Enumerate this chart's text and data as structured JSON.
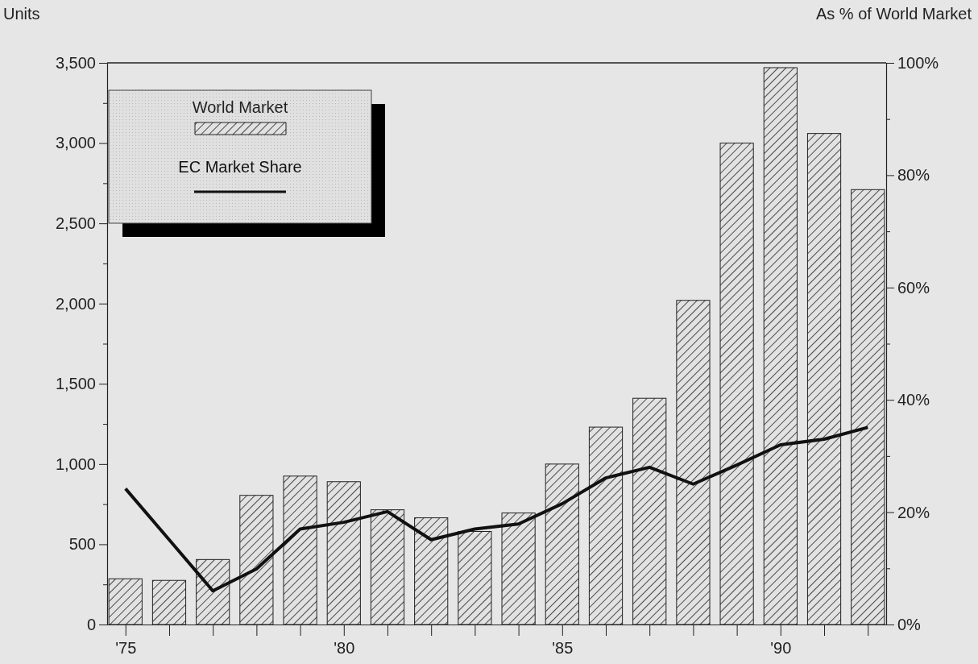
{
  "chart_data": {
    "type": "bar",
    "ylabel": "Units",
    "y2label": "As % of World Market",
    "categories": [
      "'75",
      null,
      null,
      null,
      null,
      "'80",
      null,
      null,
      null,
      null,
      "'85",
      null,
      null,
      null,
      null,
      "'90",
      null,
      null
    ],
    "series": [
      {
        "name": "World Market",
        "type": "bar",
        "color": "#222222",
        "values": [
          285,
          275,
          405,
          805,
          925,
          890,
          715,
          665,
          580,
          695,
          1000,
          1230,
          1410,
          2020,
          3000,
          3470,
          3060,
          2710
        ]
      },
      {
        "name": "EC Market Share",
        "type": "line",
        "axis": "y2",
        "color": "#111111",
        "values": [
          24.2,
          15.1,
          6.0,
          9.9,
          17.0,
          18.2,
          20.1,
          15.1,
          17.0,
          17.9,
          21.5,
          26.1,
          28.0,
          25.0,
          28.4,
          32.0,
          33.0,
          35.1
        ]
      }
    ],
    "ylim": [
      0,
      3500
    ],
    "yticks": [
      {
        "value": 0,
        "label": "0"
      },
      {
        "value": 250,
        "label": null
      },
      {
        "value": 500,
        "label": "500"
      },
      {
        "value": 750,
        "label": null
      },
      {
        "value": 1000,
        "label": "1,000"
      },
      {
        "value": 1250,
        "label": null
      },
      {
        "value": 1500,
        "label": "1,500"
      },
      {
        "value": 1750,
        "label": null
      },
      {
        "value": 2000,
        "label": "2,000"
      },
      {
        "value": 2250,
        "label": null
      },
      {
        "value": 2500,
        "label": "2,500"
      },
      {
        "value": 2750,
        "label": null
      },
      {
        "value": 3000,
        "label": "3,000"
      },
      {
        "value": 3250,
        "label": null
      },
      {
        "value": 3500,
        "label": "3,500"
      }
    ],
    "y2lim": [
      0,
      100
    ],
    "y2ticks": [
      {
        "value": 0,
        "label": "0%"
      },
      {
        "value": 10,
        "label": null
      },
      {
        "value": 20,
        "label": "20%"
      },
      {
        "value": 30,
        "label": null
      },
      {
        "value": 40,
        "label": "40%"
      },
      {
        "value": 50,
        "label": null
      },
      {
        "value": 60,
        "label": "60%"
      },
      {
        "value": 70,
        "label": null
      },
      {
        "value": 80,
        "label": "80%"
      },
      {
        "value": 90,
        "label": null
      },
      {
        "value": 100,
        "label": "100%"
      }
    ],
    "legend": "top left",
    "grid": false,
    "marker": "none",
    "line_style": "solid"
  }
}
